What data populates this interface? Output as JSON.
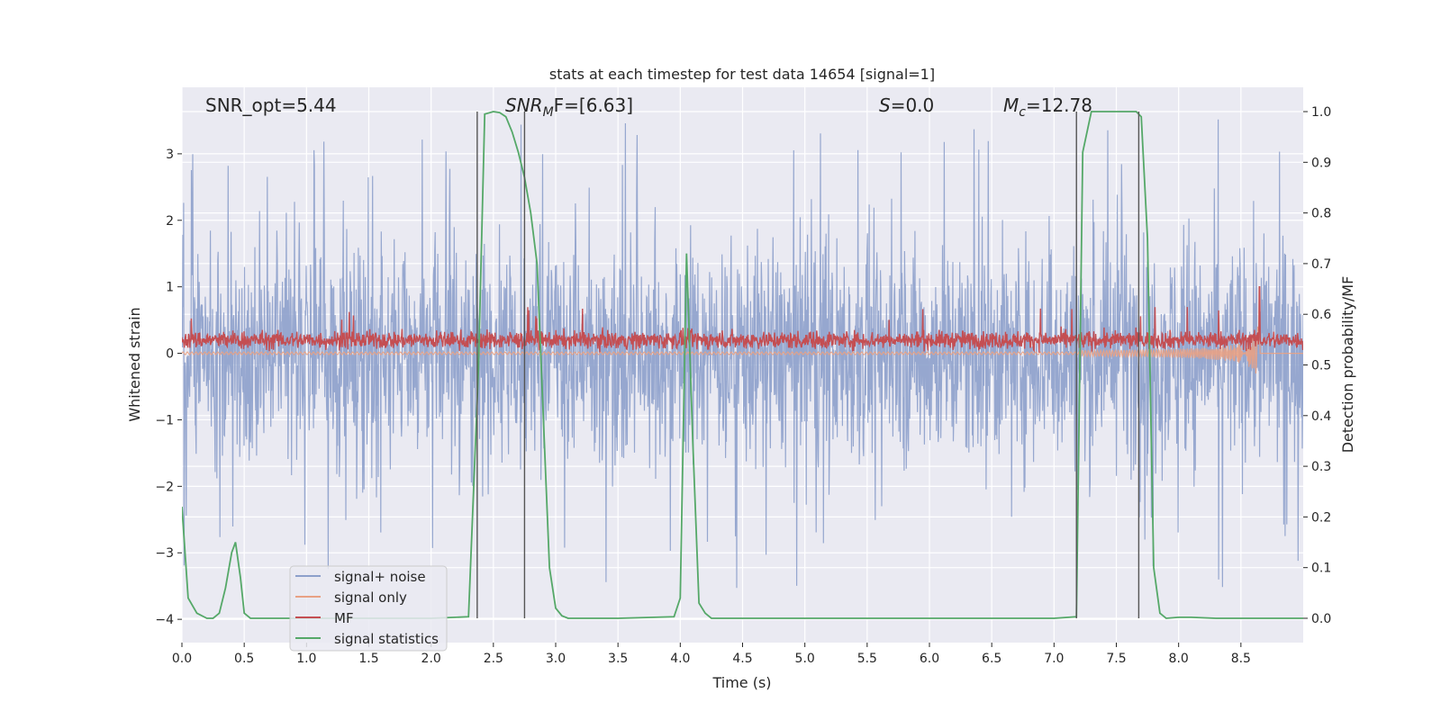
{
  "chart_data": {
    "type": "line",
    "title": "stats at each timestep for test data 14654 [signal=1]",
    "xlabel": "Time (s)",
    "ylabel": "Whitened strain",
    "ylabel_right": "Detection probability/MF",
    "xlim": [
      0,
      9.0
    ],
    "ylim": [
      -4.35,
      4.0
    ],
    "ylim_right": [
      -0.048,
      1.048
    ],
    "x_ticks": [
      0.0,
      0.5,
      1.0,
      1.5,
      2.0,
      2.5,
      3.0,
      3.5,
      4.0,
      4.5,
      5.0,
      5.5,
      6.0,
      6.5,
      7.0,
      7.5,
      8.0,
      8.5
    ],
    "x_tick_labels": [
      "0.0",
      "0.5",
      "1.0",
      "1.5",
      "2.0",
      "2.5",
      "3.0",
      "3.5",
      "4.0",
      "4.5",
      "5.0",
      "5.5",
      "6.0",
      "6.5",
      "7.0",
      "7.5",
      "8.0",
      "8.5"
    ],
    "y_ticks": [
      -4,
      -3,
      -2,
      -1,
      0,
      1,
      2,
      3
    ],
    "y_tick_labels": [
      "−4",
      "−3",
      "−2",
      "−1",
      "0",
      "1",
      "2",
      "3"
    ],
    "y_right_ticks": [
      0.0,
      0.1,
      0.2,
      0.3,
      0.4,
      0.5,
      0.6,
      0.7,
      0.8,
      0.9,
      1.0
    ],
    "y_right_tick_labels": [
      "0.0",
      "0.1",
      "0.2",
      "0.3",
      "0.4",
      "0.5",
      "0.6",
      "0.7",
      "0.8",
      "0.9",
      "1.0"
    ],
    "grid": true,
    "legend_position": "lower-left",
    "annotations": {
      "snr_opt": "SNR_opt=5.44",
      "snr_mf": "SNR",
      "snr_mf_sub": "M",
      "snr_mf_rest": "F=[6.63]",
      "s_sym": "S",
      "s_rest": "=0.0",
      "mc_sym": "M",
      "mc_sub": "c",
      "mc_rest": "=12.78"
    },
    "vertical_lines_x": [
      2.37,
      2.75,
      7.18,
      7.68
    ],
    "series": [
      {
        "name": "signal+ noise",
        "color": "#8da0cb",
        "axis": "left",
        "style": "dense-noise",
        "amplitude_typical": 1.5,
        "amplitude_peak": 3.6
      },
      {
        "name": "signal only",
        "color": "#e8a184",
        "axis": "left",
        "style": "chirp",
        "x_start": 7.2,
        "x_merger": 8.65,
        "peak_amplitude": 0.9
      },
      {
        "name": "MF",
        "color": "#c44e52",
        "axis": "left",
        "style": "dense-noise",
        "baseline": 0.2,
        "amplitude_typical": 0.15,
        "peak": {
          "x": 8.65,
          "y": 1.0
        }
      },
      {
        "name": "signal statistics",
        "color": "#55a868",
        "axis": "right",
        "x": [
          0.0,
          0.05,
          0.12,
          0.2,
          0.25,
          0.3,
          0.35,
          0.4,
          0.43,
          0.47,
          0.5,
          0.55,
          0.6,
          1.0,
          1.5,
          2.0,
          2.3,
          2.38,
          2.43,
          2.5,
          2.55,
          2.6,
          2.65,
          2.7,
          2.75,
          2.8,
          2.85,
          2.9,
          2.95,
          3.0,
          3.05,
          3.1,
          3.5,
          3.95,
          4.0,
          4.05,
          4.1,
          4.15,
          4.2,
          4.25,
          5.0,
          6.0,
          7.0,
          7.18,
          7.23,
          7.3,
          7.4,
          7.5,
          7.6,
          7.66,
          7.7,
          7.75,
          7.8,
          7.85,
          7.9,
          8.0,
          8.1,
          8.3,
          8.5,
          9.0
        ],
        "y": [
          0.22,
          0.04,
          0.01,
          0.0,
          0.0,
          0.01,
          0.06,
          0.13,
          0.15,
          0.08,
          0.01,
          0.0,
          0.0,
          0.0,
          0.0,
          0.0,
          0.003,
          0.49,
          0.995,
          1.0,
          0.998,
          0.99,
          0.96,
          0.92,
          0.87,
          0.8,
          0.7,
          0.4,
          0.1,
          0.02,
          0.005,
          0.0,
          0.0,
          0.003,
          0.04,
          0.72,
          0.35,
          0.03,
          0.01,
          0.0,
          0.0,
          0.0,
          0.0,
          0.003,
          0.92,
          1.0,
          1.0,
          1.0,
          1.0,
          1.0,
          0.99,
          0.75,
          0.1,
          0.01,
          0.0,
          0.002,
          0.002,
          0.0,
          0.0,
          0.0
        ]
      }
    ]
  }
}
